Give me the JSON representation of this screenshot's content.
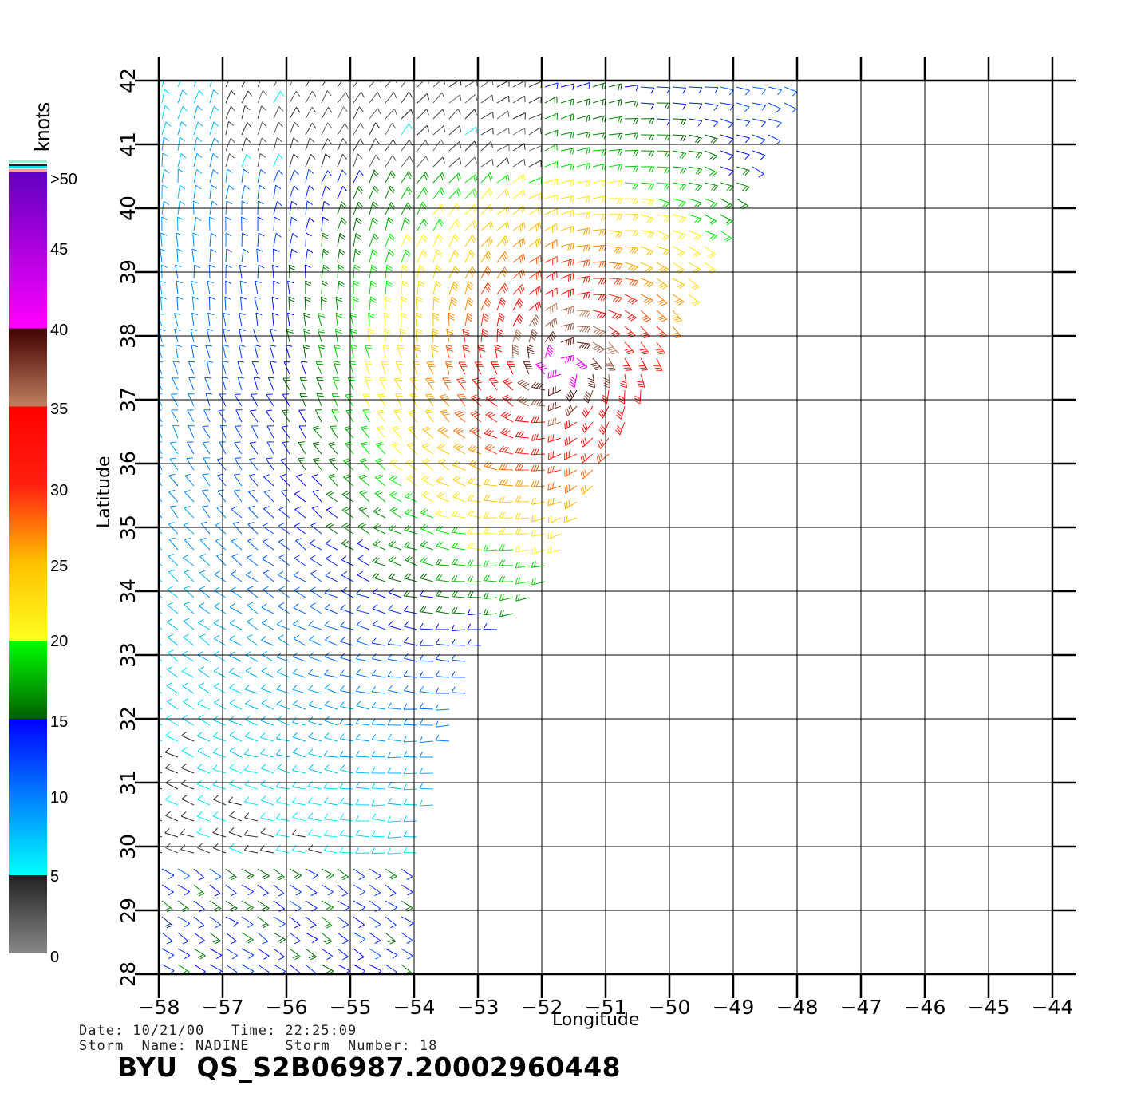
{
  "plot": {
    "x_axis_label": "Longitude",
    "y_axis_label": "Latitude",
    "x_ticks": [
      -58,
      -57,
      -56,
      -55,
      -54,
      -53,
      -52,
      -51,
      -50,
      -49,
      -48,
      -47,
      -46,
      -45,
      -44
    ],
    "y_ticks": [
      28,
      29,
      30,
      31,
      32,
      33,
      34,
      35,
      36,
      37,
      38,
      39,
      40,
      41,
      42
    ],
    "x_range": [
      -58,
      -44
    ],
    "y_range": [
      28,
      42
    ],
    "grid": true,
    "wind_barbs": "scatterometer wind vectors colored by speed",
    "swath_edges": {
      "west_lon": -58,
      "north_lat": 42,
      "east_edge_points": [
        [
          -48,
          42
        ],
        [
          -49,
          40
        ],
        [
          -50,
          38
        ],
        [
          -51,
          36
        ],
        [
          -52,
          34
        ],
        [
          -53,
          33
        ],
        [
          -54,
          29.5
        ],
        [
          -54,
          28
        ]
      ]
    },
    "storm_center": [
      -51.7,
      37.5
    ]
  },
  "legend": {
    "unit": "knots",
    "labels": [
      ">50",
      "45",
      "40",
      "35",
      "30",
      "25",
      "20",
      "15",
      "10",
      "5",
      "0"
    ],
    "stops": [
      {
        "speed": 0,
        "color": "#888888"
      },
      {
        "speed": 5,
        "color": "#222222"
      },
      {
        "speed": 5.01,
        "color": "#00ffff"
      },
      {
        "speed": 10,
        "color": "#0080ff"
      },
      {
        "speed": 15,
        "color": "#0000ff"
      },
      {
        "speed": 15.01,
        "color": "#006000"
      },
      {
        "speed": 20,
        "color": "#00ff00"
      },
      {
        "speed": 20.01,
        "color": "#ffff20"
      },
      {
        "speed": 25,
        "color": "#ffc000"
      },
      {
        "speed": 30,
        "color": "#ff2010"
      },
      {
        "speed": 35,
        "color": "#ff0000"
      },
      {
        "speed": 35.01,
        "color": "#c08060"
      },
      {
        "speed": 40,
        "color": "#400000"
      },
      {
        "speed": 40.01,
        "color": "#ff00ff"
      },
      {
        "speed": 50,
        "color": "#6000c0"
      }
    ]
  },
  "info": {
    "date_line": "Date: 10/21/00   Time: 22:25:09",
    "storm_line": "Storm  Name: NADINE    Storm  Number: 18",
    "file_id": "BYU  QS_S2B06987.20002960448"
  }
}
